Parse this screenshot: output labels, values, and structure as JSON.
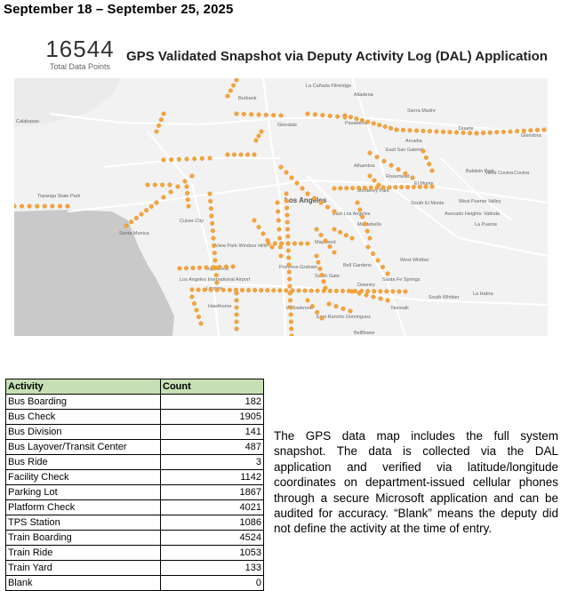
{
  "header": {
    "date_range": "September 18 – September 25, 2025"
  },
  "kpi": {
    "value": "16544",
    "label": "Total Data Points"
  },
  "map": {
    "title": "GPS Validated Snapshot via Deputy Activity Log (DAL) Application",
    "labels": [
      "La Cañada Flintridge",
      "Altadena",
      "Burbank",
      "Sierra Madre",
      "Calabasas",
      "Glendale",
      "Pasadena",
      "Duarte",
      "Glendora",
      "Arcadia",
      "East San Gabriel",
      "Alhambra",
      "Rosemead",
      "Baldwin Park",
      "West Covina",
      "Covina",
      "El Monte",
      "South El Monte",
      "Monterey Park",
      "Topanga State Park",
      "Los Angeles",
      "West Puente Valley",
      "Avocado Heights",
      "Valinda",
      "Culver City",
      "East Los Angeles",
      "Santa Monica",
      "Montebello",
      "La Puente",
      "View Park-Windsor Hills",
      "Maywood",
      "Inglewood",
      "Florence-Graham",
      "Bell Gardens",
      "West Whittier",
      "Los Angeles International Airport",
      "South Gate",
      "Lennox",
      "Downey",
      "Santa Fe Springs",
      "Hawthorne",
      "Willowbrook",
      "South Whittier",
      "La Habra",
      "Norwalk",
      "East Rancho Dominguez",
      "Bellflower"
    ],
    "colors": {
      "dot": "#f7a43a",
      "dot_edge": "#d9861f",
      "land": "#f2f2f2",
      "water": "#c8c8c8",
      "road": "#ffffff"
    }
  },
  "table": {
    "headers": [
      "Activity",
      "Count"
    ],
    "rows": [
      [
        "Bus Boarding",
        "182"
      ],
      [
        "Bus Check",
        "1905"
      ],
      [
        "Bus Division",
        "141"
      ],
      [
        "Bus Layover/Transit Center",
        "487"
      ],
      [
        "Bus Ride",
        "3"
      ],
      [
        "Facility Check",
        "1142"
      ],
      [
        "Parking Lot",
        "1867"
      ],
      [
        "Platform Check",
        "4021"
      ],
      [
        "TPS Station",
        "1086"
      ],
      [
        "Train Boarding",
        "4524"
      ],
      [
        "Train Ride",
        "1053"
      ],
      [
        "Train Yard",
        "133"
      ],
      [
        "Blank",
        "0"
      ]
    ]
  },
  "description": "The GPS data map includes the full system snapshot. The data is collected via the DAL application and verified via latitude/longitude coordinates on department-issued cellular phones through a secure Microsoft application and can be audited for accuracy. “Blank” means the deputy did not define the activity at the time of entry."
}
